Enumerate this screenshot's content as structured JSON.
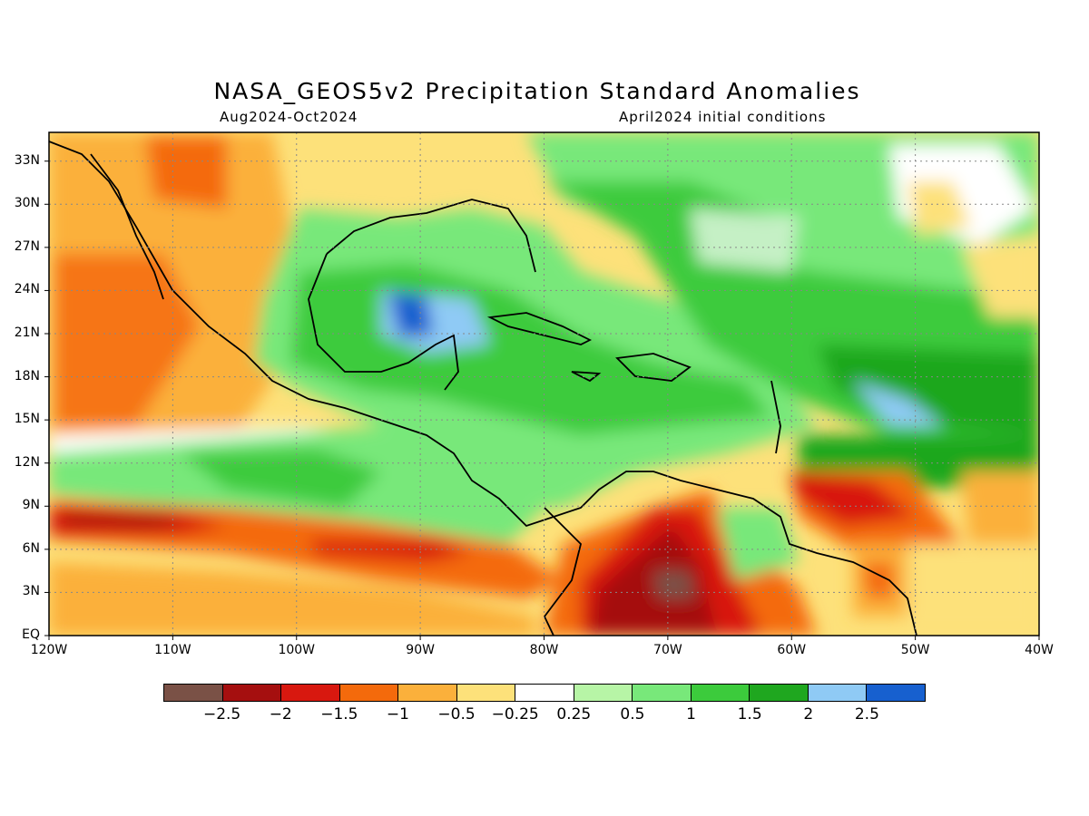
{
  "title": "NASA_GEOS5v2 Precipitation Standard Anomalies",
  "period": "Aug2024-Oct2024",
  "init": "April2024 initial conditions",
  "lat_labels": [
    "33N",
    "30N",
    "27N",
    "24N",
    "21N",
    "18N",
    "15N",
    "12N",
    "9N",
    "6N",
    "3N",
    "EQ"
  ],
  "lon_labels": [
    "120W",
    "110W",
    "100W",
    "90W",
    "80W",
    "70W",
    "60W",
    "50W",
    "40W"
  ],
  "colorbar": {
    "labels": [
      "−2.5",
      "−2",
      "−1.5",
      "−1",
      "−0.5",
      "−0.25",
      "0.25",
      "0.5",
      "1",
      "1.5",
      "2",
      "2.5"
    ],
    "colors": [
      "#7a5146",
      "#a50f0f",
      "#d8180f",
      "#f46a0c",
      "#fbb03b",
      "#fde17a",
      "#ffffff",
      "#b7f5a6",
      "#78e87a",
      "#3ccb3c",
      "#1fa71f",
      "#8fcaf5",
      "#1760cf"
    ]
  }
}
